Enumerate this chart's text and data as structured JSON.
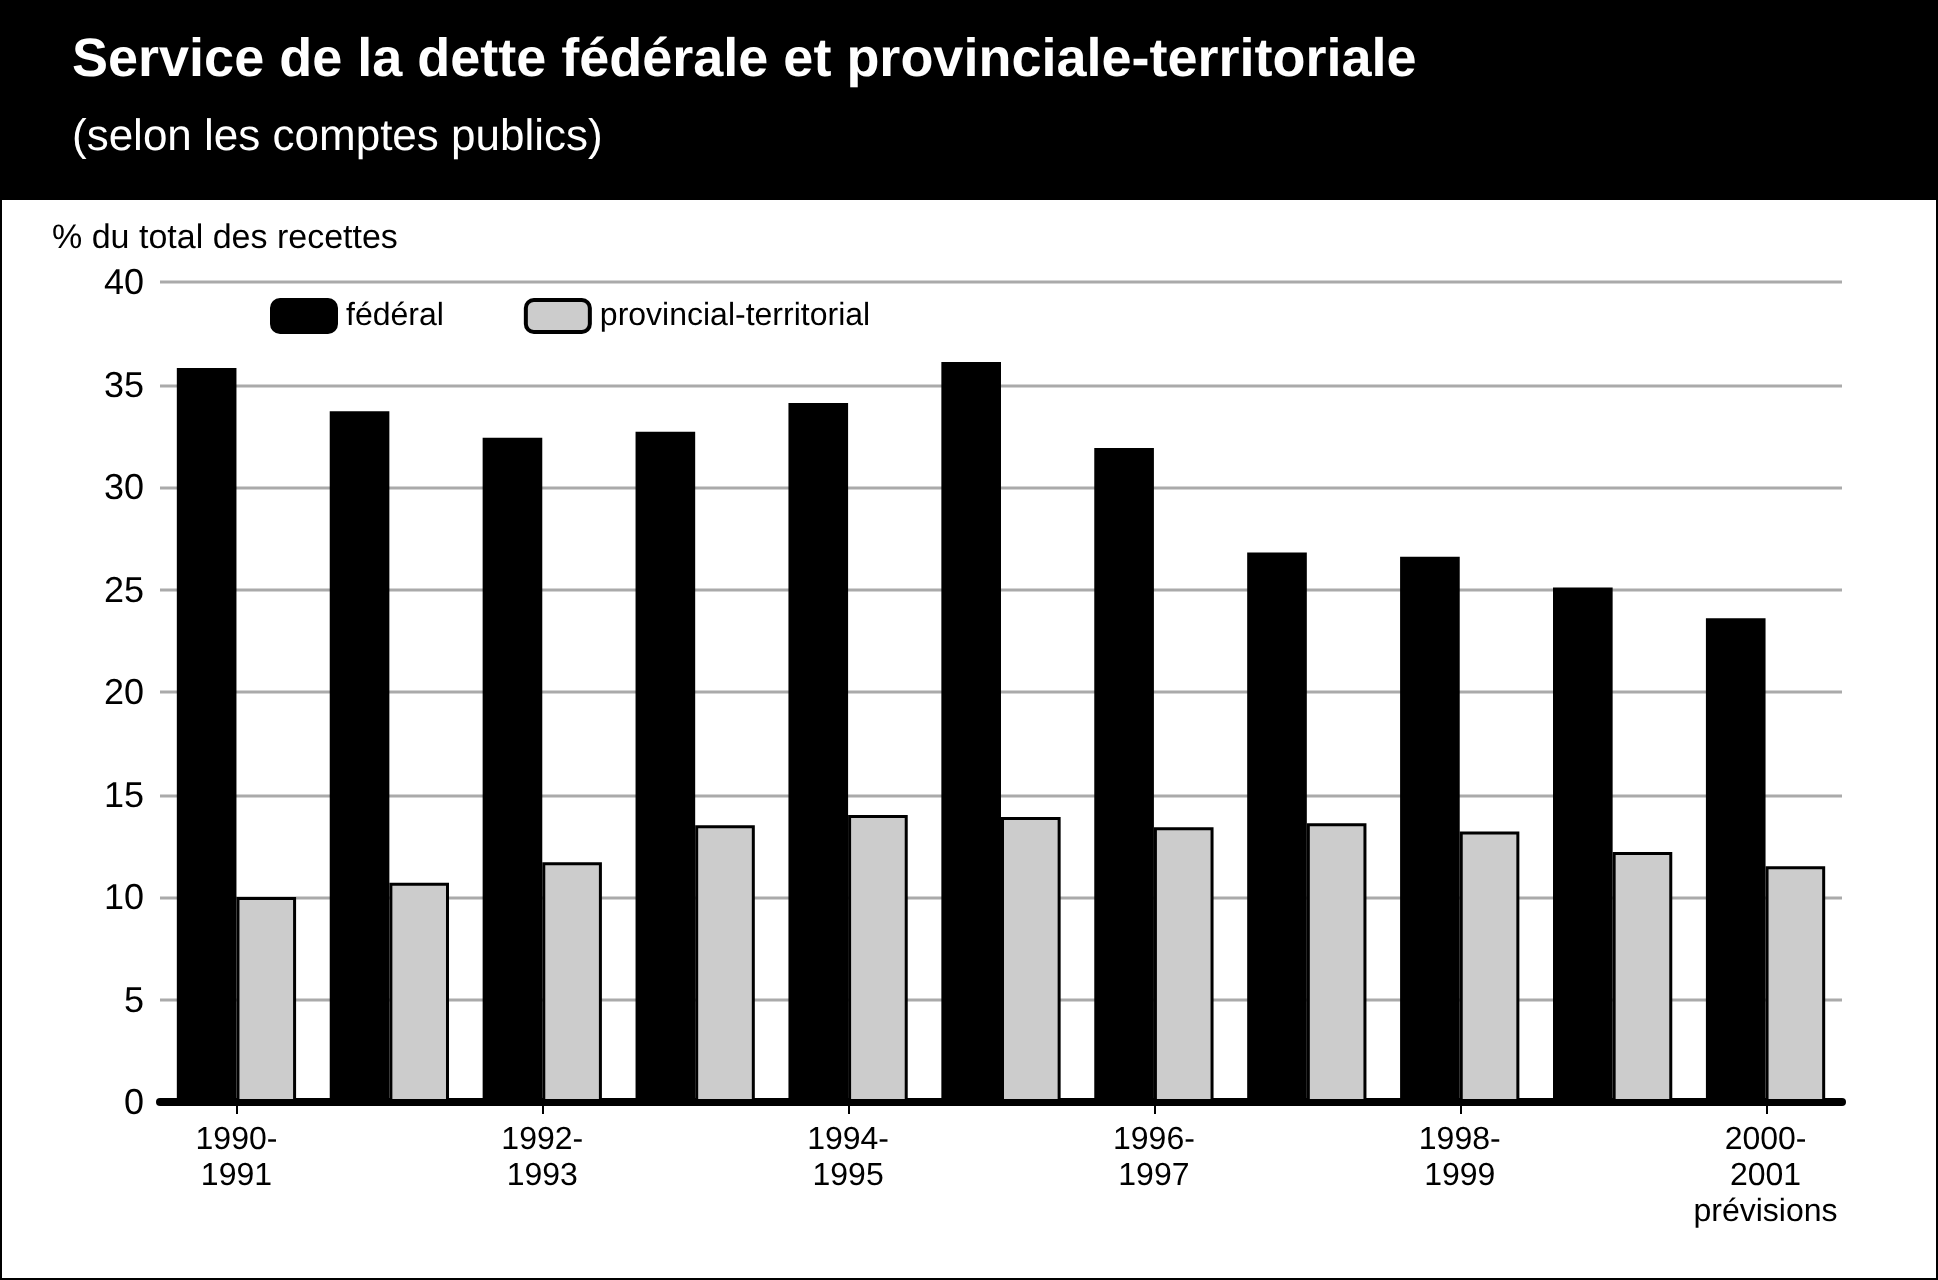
{
  "chart_data": {
    "type": "bar",
    "title": "Service de la dette fédérale et provinciale-territoriale",
    "subtitle": "(selon les comptes publics)",
    "ylabel": "% du total des recettes",
    "categories": [
      "1990-\n1991",
      null,
      "1992-\n1993",
      null,
      "1994-\n1995",
      null,
      "1996-\n1997",
      null,
      "1998-\n1999",
      null,
      "2000-\n2001\nprévisions"
    ],
    "series": [
      {
        "name": "fédéral",
        "color": "#000000",
        "values": [
          35.8,
          33.7,
          32.4,
          32.7,
          34.1,
          36.1,
          31.9,
          26.8,
          26.6,
          25.1,
          23.6
        ]
      },
      {
        "name": "provincial-territorial",
        "color": "#cccccc",
        "values": [
          10.0,
          10.7,
          11.7,
          13.5,
          14.0,
          13.9,
          13.4,
          13.6,
          13.2,
          12.2,
          11.5
        ]
      }
    ],
    "ylim": [
      0,
      40
    ],
    "yticks": [
      0,
      5,
      10,
      15,
      20,
      25,
      30,
      35,
      40
    ],
    "grid": "y",
    "legend": "top left"
  }
}
